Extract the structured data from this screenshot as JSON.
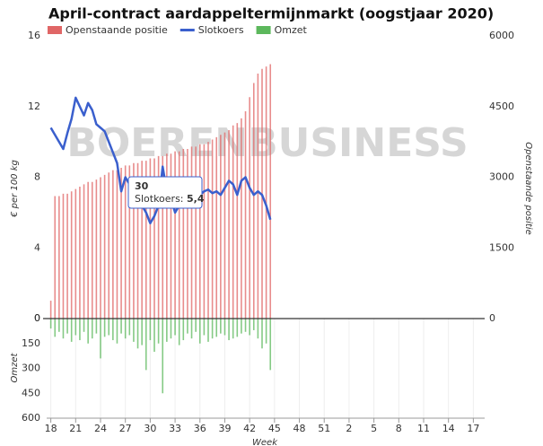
{
  "chart_data": {
    "type": "combo",
    "title": "April-contract aardappeltermijnmarkt (oogstjaar 2020)",
    "watermark": "BOERENBUSINESS",
    "x_label": "Week",
    "y_label": "€ per 100 kg",
    "y2_label": "Openstaande positie",
    "y3_label": "Omzet",
    "x": [
      18,
      18.5,
      19,
      19.5,
      20,
      20.5,
      21,
      21.5,
      22,
      22.5,
      23,
      23.5,
      24,
      24.5,
      25,
      25.5,
      26,
      26.5,
      27,
      27.5,
      28,
      28.5,
      29,
      29.5,
      30,
      30.5,
      31,
      31.5,
      32,
      32.5,
      33,
      33.5,
      34,
      34.5,
      35,
      35.5,
      36,
      36.5,
      37,
      37.5,
      38,
      38.5,
      39,
      39.5,
      40,
      40.5,
      41,
      41.5,
      42,
      42.5,
      43,
      43.5,
      44,
      44.5
    ],
    "xlim": [
      17.5,
      69.5
    ],
    "xticks": [
      18,
      21,
      24,
      27,
      30,
      33,
      36,
      39,
      42,
      45,
      48,
      51,
      {
        "value": 54,
        "label": "2"
      },
      {
        "value": 57,
        "label": "5"
      },
      {
        "value": 60,
        "label": "8"
      },
      {
        "value": 63,
        "label": "11"
      },
      {
        "value": 66,
        "label": "14"
      },
      {
        "value": 69,
        "label": "17"
      }
    ],
    "ylim": [
      0,
      16
    ],
    "yticks": [
      0,
      4,
      8,
      12,
      16
    ],
    "y2lim": [
      0,
      6000
    ],
    "y2ticks": [
      0,
      1500,
      3000,
      4500,
      6000
    ],
    "y3lim": [
      0,
      600
    ],
    "y3ticks": [
      0,
      150,
      300,
      450,
      600
    ],
    "series": [
      {
        "name": "Openstaande positie",
        "type": "bar",
        "axis": "y2",
        "color": "#e06666",
        "values": [
          380,
          2600,
          2600,
          2650,
          2650,
          2700,
          2750,
          2800,
          2850,
          2900,
          2900,
          2950,
          3000,
          3050,
          3100,
          3150,
          3150,
          3200,
          3250,
          3250,
          3300,
          3300,
          3350,
          3350,
          3400,
          3400,
          3450,
          3450,
          3500,
          3500,
          3550,
          3550,
          3600,
          3600,
          3650,
          3650,
          3700,
          3700,
          3750,
          3800,
          3850,
          3900,
          3950,
          4000,
          4100,
          4150,
          4250,
          4400,
          4700,
          5000,
          5200,
          5300,
          5350,
          5400
        ]
      },
      {
        "name": "Slotkoers",
        "type": "line",
        "axis": "y",
        "color": "#3a5fcd",
        "values": [
          10.8,
          10.4,
          10.0,
          9.6,
          10.5,
          11.3,
          12.5,
          12.0,
          11.5,
          12.2,
          11.8,
          11.0,
          10.8,
          10.6,
          10.0,
          9.4,
          8.8,
          7.2,
          8.0,
          7.6,
          7.8,
          7.2,
          6.4,
          6.0,
          5.4,
          5.8,
          6.4,
          8.6,
          7.2,
          6.8,
          6.0,
          6.4,
          7.6,
          6.9,
          7.4,
          7.2,
          7.0,
          7.2,
          7.3,
          7.1,
          7.2,
          7.0,
          7.4,
          7.8,
          7.6,
          7.0,
          7.8,
          8.0,
          7.4,
          7.0,
          7.2,
          7.0,
          6.4,
          5.6
        ]
      },
      {
        "name": "Omzet",
        "type": "bar",
        "axis": "y3",
        "color": "#5cb85c",
        "values": [
          60,
          110,
          80,
          120,
          90,
          140,
          100,
          130,
          80,
          150,
          120,
          90,
          240,
          110,
          100,
          130,
          150,
          90,
          120,
          100,
          140,
          180,
          160,
          310,
          130,
          200,
          150,
          450,
          140,
          120,
          100,
          160,
          130,
          90,
          120,
          80,
          150,
          100,
          140,
          120,
          110,
          90,
          100,
          130,
          120,
          110,
          90,
          80,
          100,
          70,
          120,
          180,
          150,
          310
        ]
      }
    ],
    "tooltip": {
      "title": "30",
      "label": "Slotkoers:",
      "value": "5,4"
    }
  }
}
